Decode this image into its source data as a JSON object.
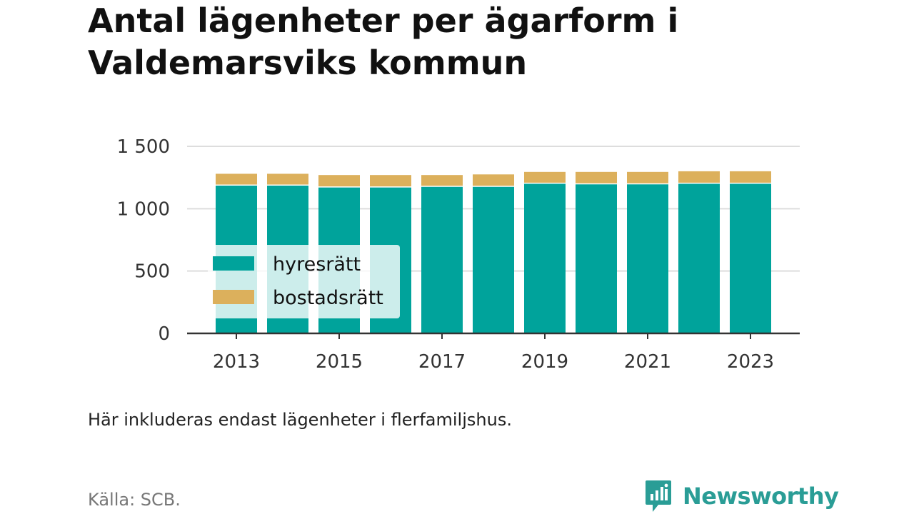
{
  "title_lines": [
    "Antal lägenheter per ägarform i",
    "Valdemarsviks kommun"
  ],
  "note": "Här inkluderas endast lägenheter i flerfamiljshus.",
  "source": "Källa: SCB.",
  "brand": {
    "name": "Newsworthy",
    "logo_icon": "newsworthy-logo-icon"
  },
  "colors": {
    "hyresratt": "#00a39b",
    "bostadsratt": "#dcb05c",
    "grid": "#dddddd",
    "axis": "#333333",
    "brand": "#2a9d96"
  },
  "chart_data": {
    "type": "bar",
    "stacked": true,
    "title": "Antal lägenheter per ägarform i Valdemarsviks kommun",
    "categories": [
      "2013",
      "2014",
      "2015",
      "2016",
      "2017",
      "2018",
      "2019",
      "2020",
      "2021",
      "2022",
      "2023"
    ],
    "series": [
      {
        "name": "hyresrätt",
        "values": [
          1185,
          1185,
          1170,
          1170,
          1175,
          1175,
          1200,
          1195,
          1195,
          1200,
          1200
        ]
      },
      {
        "name": "bostadsrätt",
        "values": [
          95,
          95,
          100,
          100,
          95,
          100,
          95,
          100,
          100,
          100,
          100
        ]
      }
    ],
    "ylim": [
      0,
      1500
    ],
    "yticks": [
      0,
      500,
      1000,
      1500
    ],
    "ytick_labels": [
      "0",
      "500",
      "1 000",
      "1 500"
    ],
    "xtick_labels": [
      "2013",
      "2015",
      "2017",
      "2019",
      "2021",
      "2023"
    ],
    "grid": true,
    "legend": {
      "position": "bottom-left",
      "entries": [
        "hyresrätt",
        "bostadsrätt"
      ]
    }
  }
}
